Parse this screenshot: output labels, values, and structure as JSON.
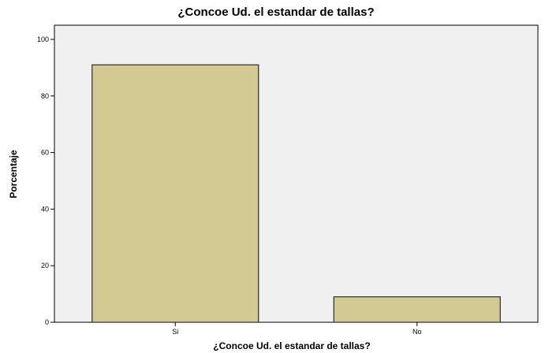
{
  "chart_data": {
    "type": "bar",
    "title": "¿Concoe Ud. el estandar de tallas?",
    "xlabel": "¿Concoe Ud. el estandar de tallas?",
    "ylabel": "Porcentaje",
    "categories": [
      "Si",
      "No"
    ],
    "values": [
      91,
      9
    ],
    "ylim": [
      0,
      100
    ],
    "yticks": [
      0,
      20,
      40,
      60,
      80,
      100
    ],
    "grid": false,
    "colors": {
      "bar_fill": "#d3c993",
      "bar_stroke": "#2b2b2b",
      "plot_background": "#f0f0f0",
      "axis": "#000000"
    }
  }
}
